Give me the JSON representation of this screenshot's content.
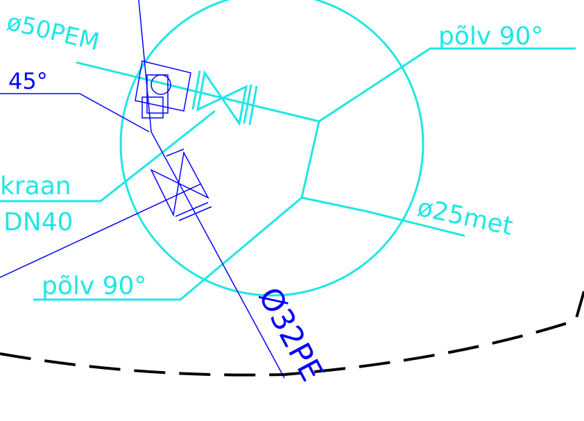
{
  "labels": {
    "pipe_main": "ø50PEM",
    "angle": "45°",
    "valve_name": "kraan",
    "valve_size": "DN40",
    "elbow_top": "põlv 90°",
    "elbow_bottom": "põlv 90°",
    "pipe_branch": "ø25met",
    "pipe_supply": "Ø32PE"
  }
}
